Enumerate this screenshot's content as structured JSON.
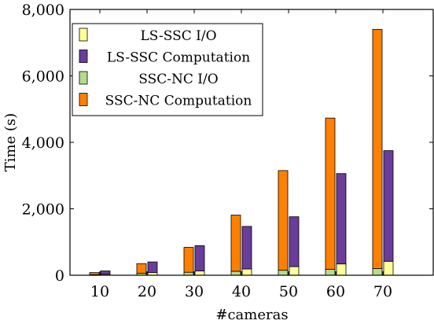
{
  "chart_data": {
    "type": "bar",
    "stacked_grouped": true,
    "categories": [
      "10",
      "20",
      "30",
      "40",
      "50",
      "60",
      "70"
    ],
    "xlabel": "#cameras",
    "ylabel": "Time (s)",
    "ylim": [
      0,
      8000
    ],
    "yticks": [
      0,
      2000,
      4000,
      6000,
      8000
    ],
    "ytick_labels": [
      "0",
      "2,000",
      "4,000",
      "6,000",
      "8,000"
    ],
    "legend_position": "top-left",
    "grid": false,
    "groups": [
      {
        "name": "SSC-NC",
        "segments": [
          {
            "name": "SSC-NC I/O",
            "color": "#b5dc8c",
            "values": [
              20,
              60,
              90,
              120,
              150,
              180,
              200
            ]
          },
          {
            "name": "SSC-NC Computation",
            "color": "#ff8000",
            "values": [
              60,
              290,
              750,
              1690,
              3000,
              4550,
              7200
            ]
          }
        ]
      },
      {
        "name": "LS-SSC",
        "segments": [
          {
            "name": "LS-SSC I/O",
            "color": "#ffff99",
            "values": [
              30,
              80,
              130,
              190,
              260,
              340,
              420
            ]
          },
          {
            "name": "LS-SSC Computation",
            "color": "#6a3d9a",
            "values": [
              100,
              320,
              760,
              1280,
              1500,
              2720,
              3330
            ]
          }
        ]
      }
    ],
    "legend": [
      {
        "label": "LS-SSC I/O",
        "color": "#ffff99"
      },
      {
        "label": "LS-SSC Computation",
        "color": "#6a3d9a"
      },
      {
        "label": "SSC-NC I/O",
        "color": "#b5dc8c"
      },
      {
        "label": "SSC-NC Computation",
        "color": "#ff8000"
      }
    ]
  }
}
